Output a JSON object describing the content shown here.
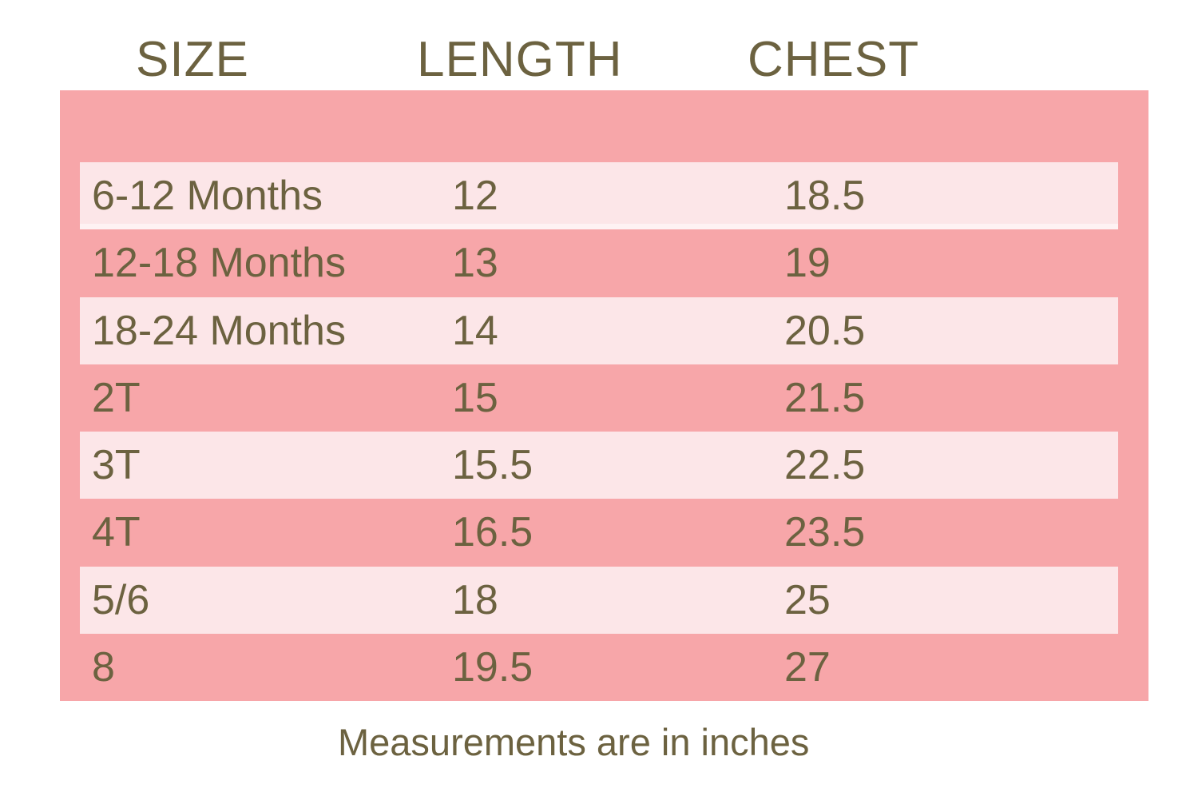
{
  "colors": {
    "page_bg": "#FFFFFF",
    "table_bg": "#F7A6A9",
    "row_highlight": "#FCE6E8",
    "text": "#6C6240"
  },
  "header": {
    "columns": [
      "SIZE",
      "LENGTH",
      "CHEST"
    ]
  },
  "rows": [
    {
      "size": "6-12 Months",
      "length": "12",
      "chest": "18.5"
    },
    {
      "size": "12-18 Months",
      "length": "13",
      "chest": "19"
    },
    {
      "size": "18-24 Months",
      "length": "14",
      "chest": "20.5"
    },
    {
      "size": "2T",
      "length": "15",
      "chest": "21.5"
    },
    {
      "size": "3T",
      "length": "15.5",
      "chest": "22.5"
    },
    {
      "size": "4T",
      "length": "16.5",
      "chest": "23.5"
    },
    {
      "size": "5/6",
      "length": "18",
      "chest": "25"
    },
    {
      "size": "8",
      "length": "19.5",
      "chest": "27"
    }
  ],
  "footer": {
    "note": "Measurements are in inches"
  },
  "chart_data": {
    "type": "table",
    "columns": [
      "SIZE",
      "LENGTH",
      "CHEST"
    ],
    "rows": [
      [
        "6-12 Months",
        12,
        18.5
      ],
      [
        "12-18 Months",
        13,
        19
      ],
      [
        "18-24 Months",
        14,
        20.5
      ],
      [
        "2T",
        15,
        21.5
      ],
      [
        "3T",
        15.5,
        22.5
      ],
      [
        "4T",
        16.5,
        23.5
      ],
      [
        "5/6",
        18,
        25
      ],
      [
        "8",
        19.5,
        27
      ]
    ],
    "units": "inches",
    "note": "Measurements are in inches",
    "layout": {
      "row_striping": "alternating light stripes on pink panel, starting with first data row",
      "grid": "off",
      "header_position": "above panel on white background"
    }
  }
}
